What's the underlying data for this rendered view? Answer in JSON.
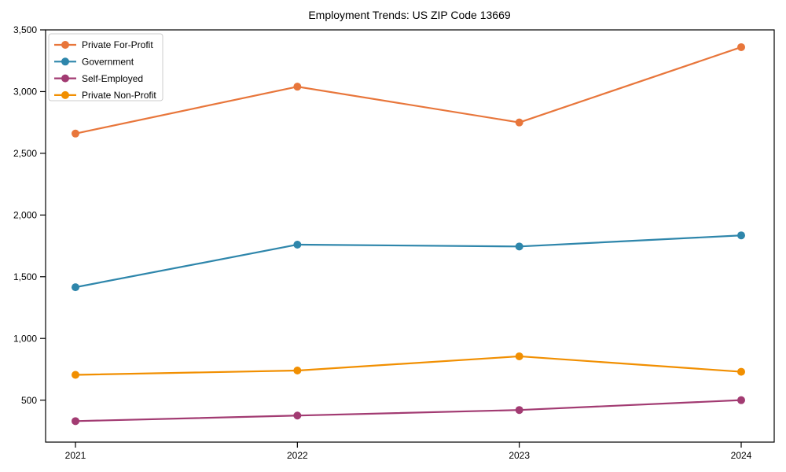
{
  "figure": {
    "background": "#ffffff"
  },
  "chart_data": {
    "type": "line",
    "title": "Employment Trends: US ZIP Code 13669",
    "x_categories": [
      "2021",
      "2022",
      "2023",
      "2024"
    ],
    "series": [
      {
        "name": "Private For-Profit",
        "color": "#E8763B",
        "values": [
          2660,
          3040,
          2750,
          3360
        ]
      },
      {
        "name": "Government",
        "color": "#2E86AB",
        "values": [
          1415,
          1760,
          1745,
          1835
        ]
      },
      {
        "name": "Self-Employed",
        "color": "#A23B72",
        "values": [
          330,
          375,
          420,
          500
        ]
      },
      {
        "name": "Private Non-Profit",
        "color": "#F18F01",
        "values": [
          705,
          740,
          855,
          730
        ]
      }
    ],
    "xlabel": "",
    "ylabel": "",
    "yticks": [
      500,
      1000,
      1500,
      2000,
      2500,
      3000,
      3500
    ],
    "ylim": [
      160,
      3500
    ],
    "grid": false,
    "legend_position": "upper-left",
    "marker": "circle",
    "line_width": 2.2,
    "marker_radius": 5,
    "axis_color": "#000000",
    "text_color": "#000000",
    "legend_border_color": "#cccccc",
    "legend_background": "#ffffff"
  }
}
